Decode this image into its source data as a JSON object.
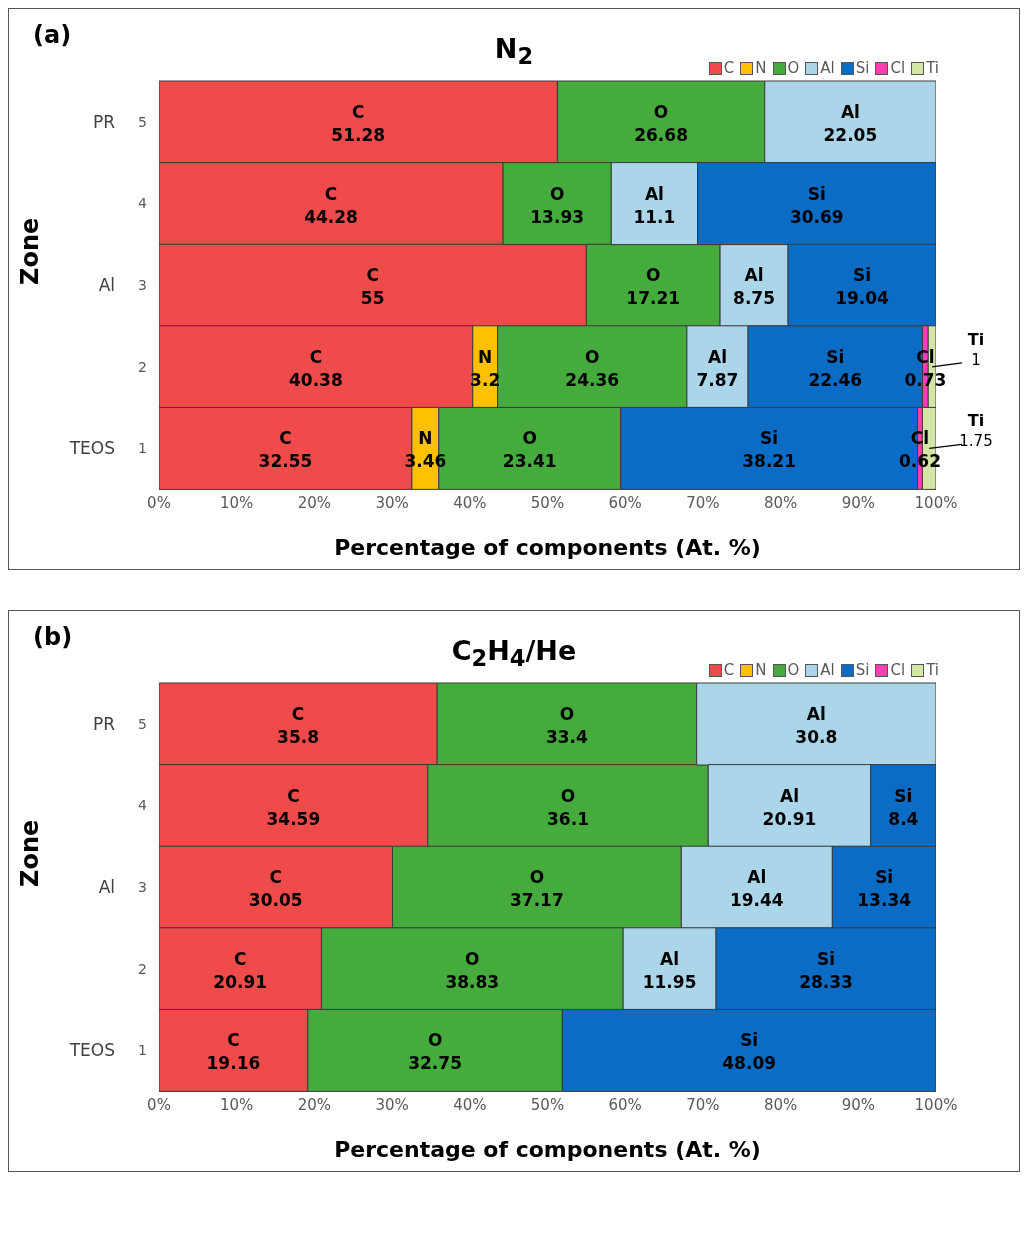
{
  "chart_data": [
    {
      "type": "bar",
      "title": "N$_{2}$",
      "xlabel": "Percentage of components (At. %)",
      "ylabel": "Zone",
      "orientation": "horizontal",
      "stacked": true,
      "data_labels": true,
      "legend": "top right",
      "categories": [
        "5",
        "4",
        "3",
        "2",
        "1"
      ],
      "annotations": [
        "(a)",
        "PR",
        "Al",
        "TEOS"
      ],
      "xlim": [
        0,
        100
      ],
      "xticks": [
        {
          "value": 0,
          "label": "0%"
        },
        {
          "value": 10,
          "label": "10%"
        },
        {
          "value": 20,
          "label": "20%"
        },
        {
          "value": 30,
          "label": "30%"
        },
        {
          "value": 40,
          "label": "40%"
        },
        {
          "value": 50,
          "label": "50%"
        },
        {
          "value": 60,
          "label": "60%"
        },
        {
          "value": 70,
          "label": "70%"
        },
        {
          "value": 80,
          "label": "80%"
        },
        {
          "value": 90,
          "label": "90%"
        },
        {
          "value": 100,
          "label": "100%"
        }
      ],
      "series": [
        {
          "name": "C",
          "color": "#f04b4b",
          "values": [
            51.28,
            44.28,
            55,
            40.38,
            32.55
          ]
        },
        {
          "name": "N",
          "color": "#ffc000",
          "values": [
            null,
            null,
            null,
            3.2,
            3.46
          ]
        },
        {
          "name": "O",
          "color": "#44ab3c",
          "values": [
            26.68,
            13.93,
            17.21,
            24.36,
            23.41
          ]
        },
        {
          "name": "Al",
          "color": "#abd6ea",
          "values": [
            22.05,
            11.1,
            8.75,
            7.87,
            null
          ]
        },
        {
          "name": "Si",
          "color": "#0a6cc4",
          "values": [
            null,
            30.69,
            19.04,
            22.46,
            38.21
          ]
        },
        {
          "name": "Cl",
          "color": "#ff3fb0",
          "values": [
            null,
            null,
            null,
            0.73,
            0.62
          ]
        },
        {
          "name": "Ti",
          "color": "#d4e6a5",
          "values": [
            null,
            null,
            null,
            1,
            1.75
          ]
        }
      ]
    },
    {
      "type": "bar",
      "title": "C$_{2}$H$_{4}$/He",
      "xlabel": "Percentage of components (At. %)",
      "ylabel": "Zone",
      "orientation": "horizontal",
      "stacked": true,
      "data_labels": true,
      "legend": "top right",
      "categories": [
        "5",
        "4",
        "3",
        "2",
        "1"
      ],
      "annotations": [
        "(b)",
        "PR",
        "Al",
        "TEOS"
      ],
      "xlim": [
        0,
        100
      ],
      "xticks": [
        {
          "value": 0,
          "label": "0%"
        },
        {
          "value": 10,
          "label": "10%"
        },
        {
          "value": 20,
          "label": "20%"
        },
        {
          "value": 30,
          "label": "30%"
        },
        {
          "value": 40,
          "label": "40%"
        },
        {
          "value": 50,
          "label": "50%"
        },
        {
          "value": 60,
          "label": "60%"
        },
        {
          "value": 70,
          "label": "70%"
        },
        {
          "value": 80,
          "label": "80%"
        },
        {
          "value": 90,
          "label": "90%"
        },
        {
          "value": 100,
          "label": "100%"
        }
      ],
      "series": [
        {
          "name": "C",
          "color": "#f04b4b",
          "values": [
            35.8,
            34.59,
            30.05,
            20.91,
            19.16
          ]
        },
        {
          "name": "N",
          "color": "#ffc000",
          "values": [
            null,
            null,
            null,
            null,
            null
          ]
        },
        {
          "name": "O",
          "color": "#44ab3c",
          "values": [
            33.4,
            36.1,
            37.17,
            38.83,
            32.75
          ]
        },
        {
          "name": "Al",
          "color": "#abd6ea",
          "values": [
            30.8,
            20.91,
            19.44,
            11.95,
            null
          ]
        },
        {
          "name": "Si",
          "color": "#0a6cc4",
          "values": [
            null,
            8.4,
            13.34,
            28.33,
            48.09
          ]
        },
        {
          "name": "Cl",
          "color": "#ff3fb0",
          "values": [
            null,
            null,
            null,
            null,
            null
          ]
        },
        {
          "name": "Ti",
          "color": "#d4e6a5",
          "values": [
            null,
            null,
            null,
            null,
            null
          ]
        }
      ]
    }
  ]
}
